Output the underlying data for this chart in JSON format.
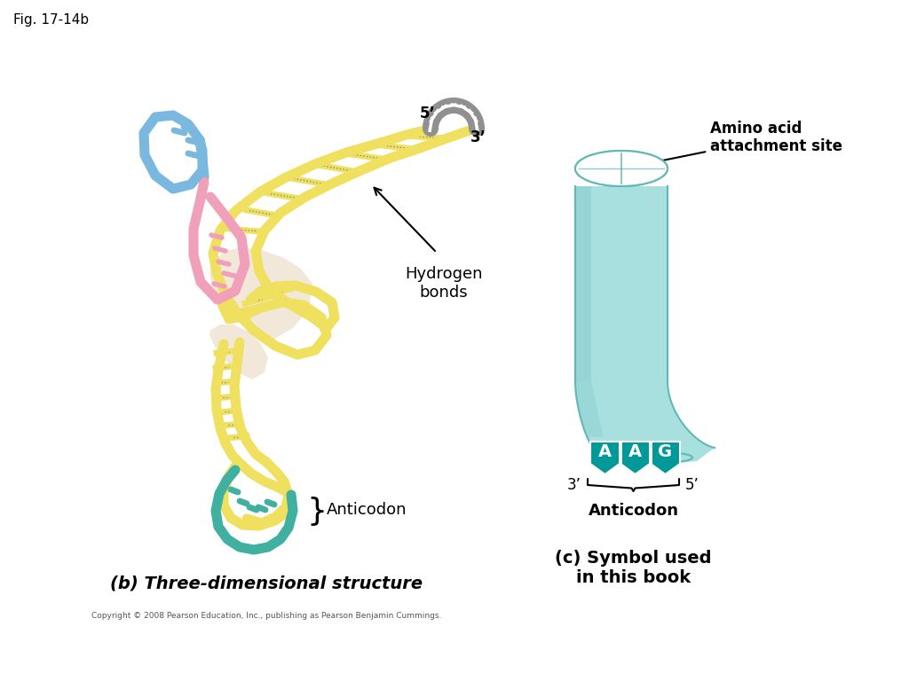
{
  "fig_label": "Fig. 17-14b",
  "bg": "#ffffff",
  "label_3d": "(b) Three-dimensional structure",
  "label_symbol": "(c) Symbol used\nin this book",
  "anticodon_label": "Anticodon",
  "anticodon_bases": [
    "A",
    "A",
    "G"
  ],
  "amino_acid_label": "Amino acid\nattachment site",
  "hbonds_label": "Hydrogen\nbonds",
  "prime5": "5’",
  "prime3": "3’",
  "yellow": "#f0e060",
  "blue": "#7ab8e0",
  "pink": "#f0a0b8",
  "teal": "#40b0a0",
  "teal_dark": "#009999",
  "gray": "#909090",
  "beige": "#f0e4d4",
  "body_color": "#a8e0e0",
  "body_edge": "#60b8b8",
  "copyright": "Copyright © 2008 Pearson Education, Inc., publishing as Pearson Benjamin Cummings."
}
